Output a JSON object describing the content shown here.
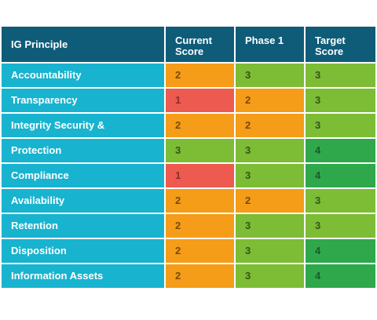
{
  "chart_data": {
    "type": "table",
    "columns": [
      "IG Principle",
      "Current\nScore",
      "Phase 1",
      "Target\nScore"
    ],
    "rows": [
      {
        "label": "Accountability",
        "values": [
          2,
          3,
          3
        ]
      },
      {
        "label": "Transparency",
        "values": [
          1,
          2,
          3
        ]
      },
      {
        "label": "Integrity Security &",
        "values": [
          2,
          2,
          3
        ]
      },
      {
        "label": "Protection",
        "values": [
          3,
          3,
          4
        ]
      },
      {
        "label": "Compliance",
        "values": [
          1,
          3,
          4
        ]
      },
      {
        "label": "Availability",
        "values": [
          2,
          2,
          3
        ]
      },
      {
        "label": "Retention",
        "values": [
          2,
          3,
          3
        ]
      },
      {
        "label": "Disposition",
        "values": [
          2,
          3,
          4
        ]
      },
      {
        "label": "Information Assets",
        "values": [
          2,
          3,
          4
        ]
      }
    ],
    "colors": {
      "header": "#0f5c79",
      "label": "#18b3cf",
      "score_1": "#ec5a50",
      "score_2": "#f59c18",
      "score_3": "#7dbc35",
      "score_4": "#2ea84b"
    }
  }
}
